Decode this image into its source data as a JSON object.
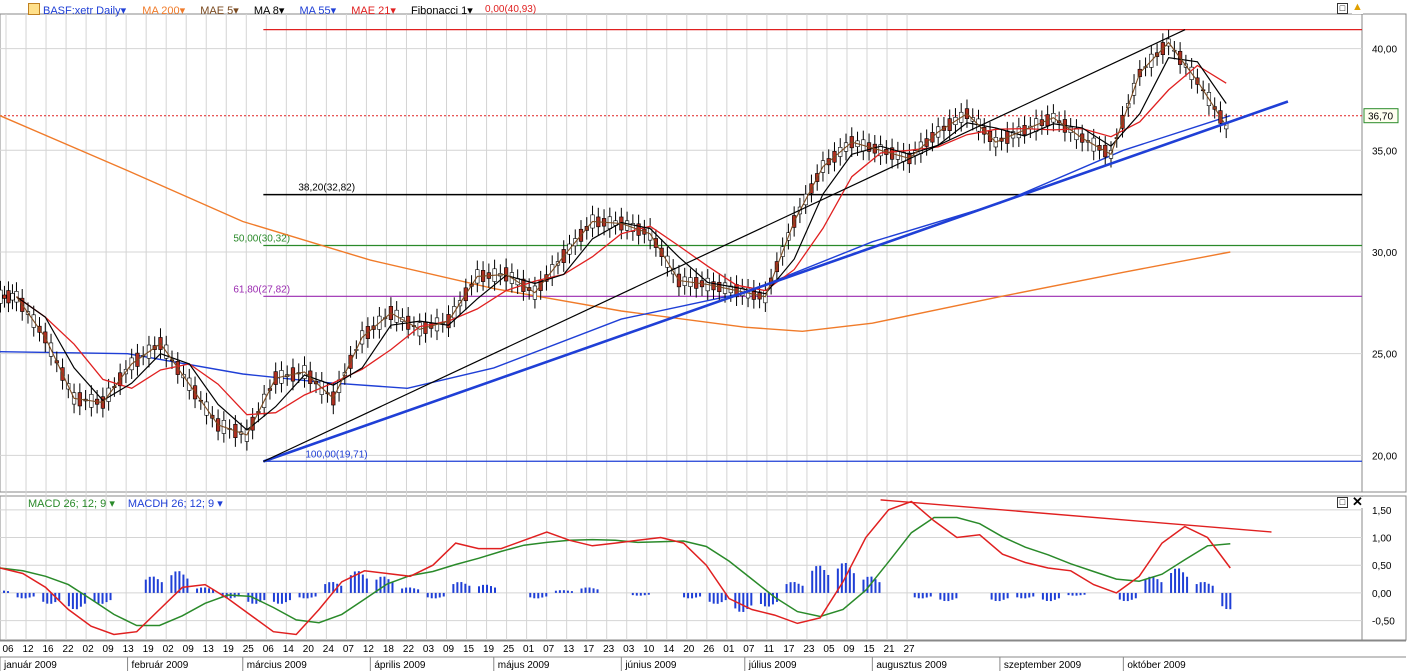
{
  "header": {
    "symbol": "BASF:xetr Daily",
    "indicators": [
      {
        "label": "MA 200",
        "color": "#f07b2a"
      },
      {
        "label": "MAE 5",
        "color": "#5a3a1a"
      },
      {
        "label": "MA 8",
        "color": "#000000"
      },
      {
        "label": "MA 55",
        "color": "#1f3fd6"
      },
      {
        "label": "MAE 21",
        "color": "#e02020"
      },
      {
        "label": "Fibonacci 1",
        "color": "#000000"
      }
    ],
    "fib_top_label": "0,00(40,93)"
  },
  "macd_header": {
    "macd_label": "MACD 26; 12; 9",
    "macdh_label": "MACDH 26; 12; 9"
  },
  "colors": {
    "candle_up": "#ffffff",
    "candle_down": "#b03020",
    "ma200": "#f07b2a",
    "mae5": "#7a4a20",
    "ma8": "#000000",
    "ma55": "#1f3fd6",
    "mae21": "#e02020",
    "trend": "#1f3fd6",
    "macd": "#e02020",
    "signal": "#2a8a2a",
    "hist": "#1f3fd6"
  },
  "chart_data": [
    {
      "type": "line",
      "title": "BASF:xetr Daily",
      "price_axis": {
        "ticks": [
          "20,00",
          "25,00",
          "30,00",
          "35,00",
          "40,00"
        ],
        "range": [
          18.2,
          41.7
        ]
      },
      "last_price": "36,70",
      "ohlc_series": [
        {
          "date": "2009-01-05",
          "close": 27.8
        },
        {
          "date": "2009-01-12",
          "close": 25.8
        },
        {
          "date": "2009-01-19",
          "close": 22.8
        },
        {
          "date": "2009-01-26",
          "close": 22.6
        },
        {
          "date": "2009-02-02",
          "close": 24.5
        },
        {
          "date": "2009-02-09",
          "close": 25.5
        },
        {
          "date": "2009-02-16",
          "close": 23.5
        },
        {
          "date": "2009-02-23",
          "close": 21.5
        },
        {
          "date": "2009-03-02",
          "close": 21.0
        },
        {
          "date": "2009-03-09",
          "close": 23.8
        },
        {
          "date": "2009-03-16",
          "close": 24.1
        },
        {
          "date": "2009-03-23",
          "close": 22.8
        },
        {
          "date": "2009-03-30",
          "close": 25.8
        },
        {
          "date": "2009-04-06",
          "close": 27.0
        },
        {
          "date": "2009-04-13",
          "close": 26.2
        },
        {
          "date": "2009-04-20",
          "close": 26.6
        },
        {
          "date": "2009-04-27",
          "close": 28.8
        },
        {
          "date": "2009-05-04",
          "close": 28.9
        },
        {
          "date": "2009-05-11",
          "close": 28.0
        },
        {
          "date": "2009-05-18",
          "close": 29.8
        },
        {
          "date": "2009-05-25",
          "close": 31.5
        },
        {
          "date": "2009-06-01",
          "close": 31.4
        },
        {
          "date": "2009-06-08",
          "close": 30.9
        },
        {
          "date": "2009-06-15",
          "close": 28.6
        },
        {
          "date": "2009-06-22",
          "close": 28.4
        },
        {
          "date": "2009-06-29",
          "close": 28.1
        },
        {
          "date": "2009-07-06",
          "close": 27.8
        },
        {
          "date": "2009-07-13",
          "close": 31.5
        },
        {
          "date": "2009-07-20",
          "close": 34.2
        },
        {
          "date": "2009-07-27",
          "close": 35.4
        },
        {
          "date": "2009-08-03",
          "close": 35.0
        },
        {
          "date": "2009-08-10",
          "close": 34.6
        },
        {
          "date": "2009-08-17",
          "close": 35.9
        },
        {
          "date": "2009-08-24",
          "close": 36.8
        },
        {
          "date": "2009-08-31",
          "close": 35.4
        },
        {
          "date": "2009-09-07",
          "close": 36.0
        },
        {
          "date": "2009-09-14",
          "close": 36.6
        },
        {
          "date": "2009-09-21",
          "close": 35.6
        },
        {
          "date": "2009-09-28",
          "close": 34.8
        },
        {
          "date": "2009-10-05",
          "close": 38.8
        },
        {
          "date": "2009-10-12",
          "close": 40.3
        },
        {
          "date": "2009-10-19",
          "close": 38.4
        },
        {
          "date": "2009-10-26",
          "close": 36.2
        }
      ],
      "lines": [
        {
          "name": "MA 200",
          "values": [
            {
              "date": "2009-01-01",
              "y": 36.7
            },
            {
              "date": "2009-02-01",
              "y": 34.0
            },
            {
              "date": "2009-03-01",
              "y": 31.5
            },
            {
              "date": "2009-04-01",
              "y": 29.6
            },
            {
              "date": "2009-05-01",
              "y": 28.2
            },
            {
              "date": "2009-06-01",
              "y": 27.1
            },
            {
              "date": "2009-07-01",
              "y": 26.3
            },
            {
              "date": "2009-07-15",
              "y": 26.1
            },
            {
              "date": "2009-08-01",
              "y": 26.5
            },
            {
              "date": "2009-09-01",
              "y": 27.8
            },
            {
              "date": "2009-10-01",
              "y": 29.0
            },
            {
              "date": "2009-10-27",
              "y": 30.0
            }
          ]
        },
        {
          "name": "MA 55",
          "values": [
            {
              "date": "2009-01-01",
              "y": 25.1
            },
            {
              "date": "2009-02-01",
              "y": 25.0
            },
            {
              "date": "2009-03-01",
              "y": 24.0
            },
            {
              "date": "2009-03-20",
              "y": 23.6
            },
            {
              "date": "2009-04-10",
              "y": 23.3
            },
            {
              "date": "2009-05-01",
              "y": 24.3
            },
            {
              "date": "2009-06-01",
              "y": 26.7
            },
            {
              "date": "2009-07-01",
              "y": 28.0
            },
            {
              "date": "2009-08-01",
              "y": 30.5
            },
            {
              "date": "2009-09-01",
              "y": 32.4
            },
            {
              "date": "2009-10-01",
              "y": 35.0
            },
            {
              "date": "2009-10-27",
              "y": 36.7
            }
          ]
        }
      ],
      "fibonacci": [
        {
          "label": "0,00(40,93)",
          "value": 40.93,
          "color": "#e02020"
        },
        {
          "label": "38,20(32,82)",
          "value": 32.82,
          "color": "#000000"
        },
        {
          "label": "50,00(30,32)",
          "value": 30.32,
          "color": "#2a8a2a"
        },
        {
          "label": "61,80(27,82)",
          "value": 27.82,
          "color": "#9a2ab0"
        },
        {
          "label": "100,00(19,71)",
          "value": 19.71,
          "color": "#1f3fd6"
        }
      ],
      "grid": true
    },
    {
      "type": "line",
      "title": "MACD 26; 12; 9",
      "y_axis": {
        "ticks": [
          "1,50",
          "1,00",
          "0,50",
          "0,00",
          "-0,50"
        ],
        "range": [
          -0.85,
          1.75
        ]
      },
      "series": [
        {
          "name": "MACD 26; 12; 9",
          "values": [
            0.45,
            0.35,
            0.1,
            -0.3,
            -0.6,
            -0.75,
            -0.7,
            -0.3,
            0.1,
            0.15,
            -0.1,
            -0.4,
            -0.7,
            -0.75,
            -0.3,
            0.2,
            0.4,
            0.35,
            0.3,
            0.5,
            0.9,
            0.8,
            0.8,
            0.95,
            1.1,
            0.95,
            0.85,
            0.9,
            0.95,
            1.0,
            0.9,
            0.5,
            -0.1,
            -0.3,
            -0.4,
            -0.55,
            -0.45,
            0.2,
            1.0,
            1.5,
            1.65,
            1.3,
            1.0,
            1.05,
            0.7,
            0.55,
            0.45,
            0.4,
            0.15,
            0.0,
            0.3,
            0.9,
            1.2,
            1.0,
            0.45
          ]
        },
        {
          "name": "MACDH 26; 12; 9",
          "values": [
            0.05,
            -0.1,
            -0.2,
            -0.3,
            -0.2,
            0.0,
            0.3,
            0.4,
            0.1,
            -0.1,
            -0.2,
            -0.2,
            -0.1,
            0.2,
            0.4,
            0.3,
            0.1,
            -0.1,
            0.2,
            0.15,
            0.0,
            -0.1,
            0.05,
            0.1,
            0.0,
            -0.05,
            0.0,
            -0.1,
            -0.2,
            -0.35,
            -0.25,
            0.2,
            0.5,
            0.55,
            0.3,
            0.0,
            -0.1,
            -0.15,
            0.0,
            -0.15,
            -0.1,
            -0.15,
            -0.05,
            0.0,
            -0.15,
            0.3,
            0.45,
            0.2,
            -0.3
          ]
        }
      ]
    }
  ],
  "time_axis": {
    "days": [
      "06",
      "12",
      "16",
      "22",
      "02",
      "09",
      "13",
      "19",
      "02",
      "09",
      "13",
      "19",
      "25",
      "06",
      "14",
      "20",
      "24",
      "07",
      "12",
      "18",
      "22",
      "03",
      "09",
      "15",
      "19",
      "25",
      "01",
      "07",
      "13",
      "17",
      "23",
      "03",
      "10",
      "14",
      "20",
      "26",
      "01",
      "07",
      "11",
      "17",
      "23",
      "05",
      "09",
      "15",
      "21",
      "27"
    ],
    "months": [
      "január 2009",
      "február 2009",
      "március 2009",
      "április 2009",
      "május 2009",
      "június 2009",
      "július 2009",
      "augusztus 2009",
      "szeptember 2009",
      "október 2009"
    ]
  }
}
